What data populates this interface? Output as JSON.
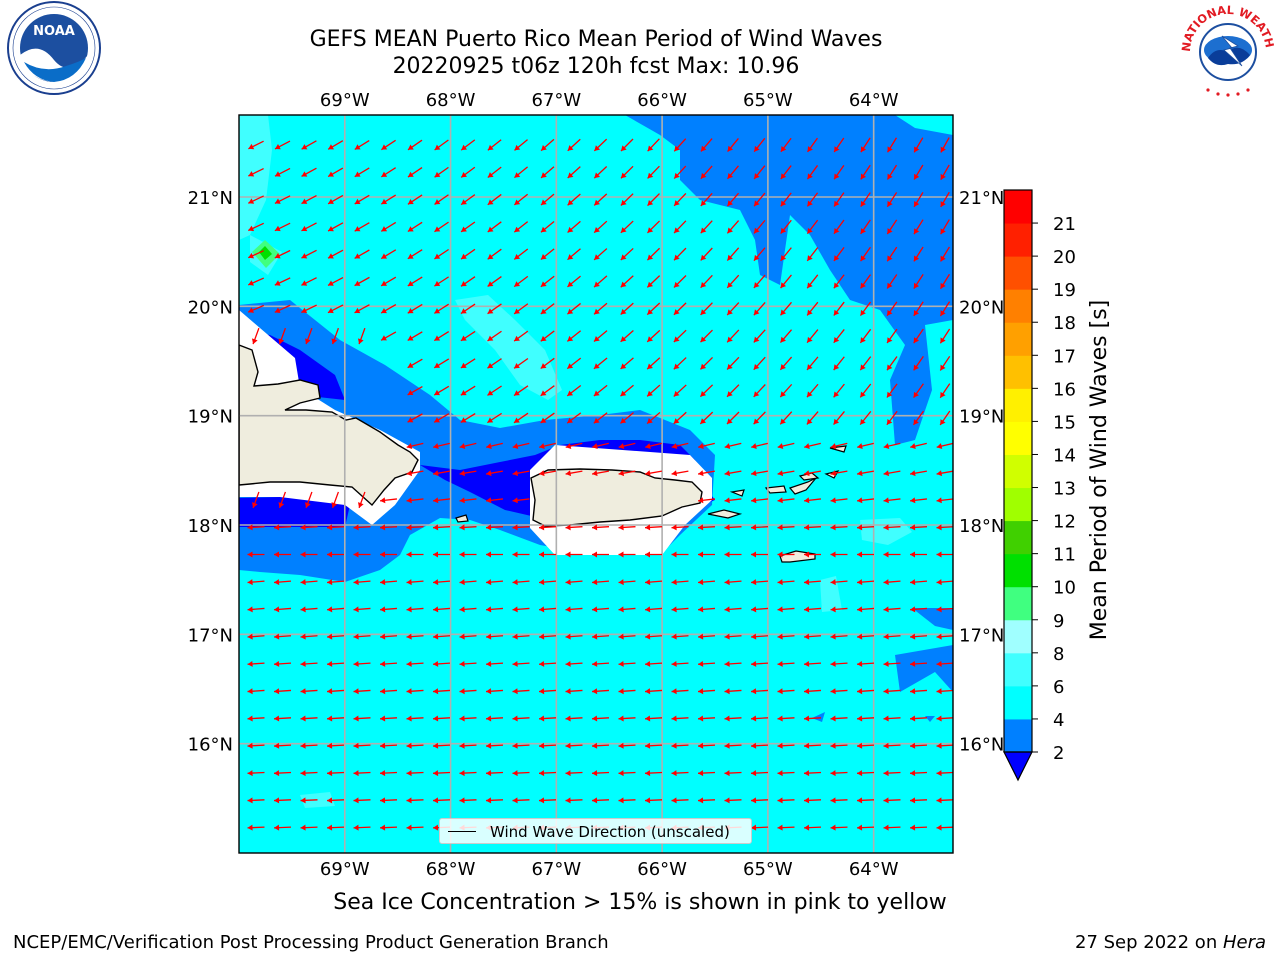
{
  "title": {
    "line1": "GEFS MEAN Puerto Rico Mean Period of Wind Waves",
    "line2": "20220925 t06z 120h fcst   Max: 10.96"
  },
  "map": {
    "lon_labels": [
      "69°W",
      "68°W",
      "67°W",
      "66°W",
      "65°W",
      "64°W"
    ],
    "lat_labels": [
      "21°N",
      "20°N",
      "19°N",
      "18°N",
      "17°N",
      "16°N"
    ],
    "lon_range": [
      -70.0,
      -63.25
    ],
    "lat_range": [
      15.0,
      21.75
    ],
    "ocean_color": "#00ffff",
    "land_color": "#efedde",
    "arrow_color": "#ff0000"
  },
  "legend": {
    "label": "Wind Wave Direction (unscaled)"
  },
  "colorbar": {
    "title": "Mean Period of Wind Waves [s]",
    "ticks": [
      "2",
      "4",
      "6",
      "8",
      "9",
      "10",
      "11",
      "12",
      "13",
      "14",
      "15",
      "16",
      "17",
      "18",
      "19",
      "20",
      "21"
    ],
    "colors": [
      "#0080ff",
      "#00ffff",
      "#40ffff",
      "#a0ffff",
      "#40ff80",
      "#00e000",
      "#40d000",
      "#a0ff00",
      "#d0ff00",
      "#ffff00",
      "#fff000",
      "#ffc000",
      "#ffa000",
      "#ff8000",
      "#ff5000",
      "#ff2000",
      "#ff0000"
    ],
    "extend_color": "#0000ff"
  },
  "note": "Sea Ice Concentration > 15% is shown in pink to yellow",
  "footer": {
    "left": "NCEP/EMC/Verification Post Processing Product Generation Branch",
    "right_prefix": "27 Sep 2022 on ",
    "right_host": "Hera"
  },
  "logos": {
    "noaa_text": "NOAA",
    "nws_text": "NATIONAL WEATHER SERVICE"
  }
}
